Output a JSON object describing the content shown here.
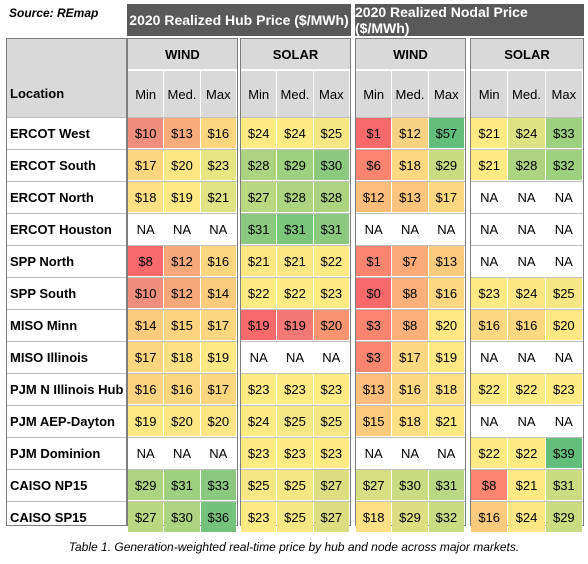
{
  "source": "Source: REmap",
  "hub_title": "2020 Realized Hub  Price ($/MWh)",
  "nodal_title": "2020 Realized Nodal Price ($/MWh)",
  "location_label": "Location",
  "groups": [
    "WIND",
    "SOLAR",
    "WIND",
    "SOLAR"
  ],
  "col_labels": [
    "Min",
    "Med.",
    "Max"
  ],
  "rows": [
    {
      "location": "ERCOT West",
      "values": [
        "$10",
        "$13",
        "$16",
        "$24",
        "$24",
        "$25",
        "$1",
        "$12",
        "$57",
        "$21",
        "$24",
        "$33"
      ]
    },
    {
      "location": "ERCOT South",
      "values": [
        "$17",
        "$20",
        "$23",
        "$28",
        "$29",
        "$30",
        "$6",
        "$18",
        "$29",
        "$21",
        "$28",
        "$32"
      ]
    },
    {
      "location": "ERCOT North",
      "values": [
        "$18",
        "$19",
        "$21",
        "$27",
        "$28",
        "$28",
        "$12",
        "$13",
        "$17",
        "NA",
        "NA",
        "NA"
      ]
    },
    {
      "location": "ERCOT Houston",
      "values": [
        "NA",
        "NA",
        "NA",
        "$31",
        "$31",
        "$31",
        "NA",
        "NA",
        "NA",
        "NA",
        "NA",
        "NA"
      ]
    },
    {
      "location": "SPP North",
      "values": [
        "$8",
        "$12",
        "$16",
        "$21",
        "$21",
        "$22",
        "$1",
        "$7",
        "$13",
        "NA",
        "NA",
        "NA"
      ]
    },
    {
      "location": "SPP South",
      "values": [
        "$10",
        "$12",
        "$14",
        "$22",
        "$22",
        "$23",
        "$0",
        "$8",
        "$16",
        "$23",
        "$24",
        "$25"
      ]
    },
    {
      "location": "MISO Minn",
      "values": [
        "$14",
        "$15",
        "$17",
        "$19",
        "$19",
        "$20",
        "$3",
        "$8",
        "$20",
        "$16",
        "$16",
        "$20"
      ]
    },
    {
      "location": "MISO Illinois",
      "values": [
        "$17",
        "$18",
        "$19",
        "NA",
        "NA",
        "NA",
        "$3",
        "$17",
        "$19",
        "NA",
        "NA",
        "NA"
      ]
    },
    {
      "location": "PJM N Illinois Hub",
      "values": [
        "$16",
        "$16",
        "$17",
        "$23",
        "$23",
        "$23",
        "$13",
        "$16",
        "$18",
        "$22",
        "$22",
        "$23"
      ]
    },
    {
      "location": "PJM AEP-Dayton",
      "values": [
        "$19",
        "$20",
        "$20",
        "$24",
        "$25",
        "$25",
        "$15",
        "$18",
        "$21",
        "NA",
        "NA",
        "NA"
      ]
    },
    {
      "location": "PJM Dominion",
      "values": [
        "NA",
        "NA",
        "NA",
        "$23",
        "$23",
        "$23",
        "NA",
        "NA",
        "NA",
        "$22",
        "$22",
        "$39"
      ]
    },
    {
      "location": "CAISO NP15",
      "values": [
        "$29",
        "$31",
        "$33",
        "$25",
        "$25",
        "$27",
        "$27",
        "$30",
        "$31",
        "$8",
        "$21",
        "$31"
      ]
    },
    {
      "location": "CAISO SP15",
      "values": [
        "$27",
        "$30",
        "$36",
        "$23",
        "$25",
        "$27",
        "$18",
        "$29",
        "$32",
        "$16",
        "$24",
        "$29"
      ]
    }
  ],
  "colors": [
    [
      "#f08e7d",
      "#f8ac7b",
      "#fcd67f",
      "#ffeb84",
      "#ffeb84",
      "#f4e784",
      "#f8696b",
      "#f6d282",
      "#63be7b",
      "#ffeb84",
      "#dde283",
      "#9dd07f"
    ],
    [
      "#fcd67f",
      "#fde784",
      "#e8e583",
      "#acd480",
      "#9dd07f",
      "#8bca7e",
      "#f98570",
      "#fed880",
      "#c9dc82",
      "#ffeb84",
      "#acd480",
      "#9dd07f"
    ],
    [
      "#fde084",
      "#fee883",
      "#e0e383",
      "#b8d881",
      "#acd480",
      "#acd480",
      "#fcbc7b",
      "#fcc47c",
      "#fed880",
      "#ffffff",
      "#ffffff",
      "#ffffff"
    ],
    [
      "#ffffff",
      "#ffffff",
      "#ffffff",
      "#8bca7e",
      "#7cc67c",
      "#8bca7e",
      "#ffffff",
      "#ffffff",
      "#ffffff",
      "#ffffff",
      "#ffffff",
      "#ffffff"
    ],
    [
      "#f8696b",
      "#f8a77a",
      "#fcd67f",
      "#fde784",
      "#fde784",
      "#fbe984",
      "#f98570",
      "#fbaa78",
      "#fcca7c",
      "#ffffff",
      "#ffffff",
      "#ffffff"
    ],
    [
      "#f08e7d",
      "#f8a77a",
      "#facb7d",
      "#ffeb84",
      "#ffeb84",
      "#ffeb84",
      "#f8696b",
      "#fbb079",
      "#fed880",
      "#ffeb84",
      "#fde784",
      "#f4e784"
    ],
    [
      "#faca7d",
      "#fbd27f",
      "#fcd67f",
      "#f8696b",
      "#f27875",
      "#f8946f",
      "#f98570",
      "#fbb079",
      "#fee883",
      "#fed880",
      "#fed880",
      "#fee883"
    ],
    [
      "#fcd67f",
      "#fde084",
      "#fee883",
      "#ffffff",
      "#ffffff",
      "#ffffff",
      "#f98570",
      "#fed880",
      "#fee883",
      "#ffffff",
      "#ffffff",
      "#ffffff"
    ],
    [
      "#fbd27f",
      "#fcd67f",
      "#fcd67f",
      "#ffeb84",
      "#ffeb84",
      "#ffeb84",
      "#fcbc7b",
      "#fed880",
      "#fee083",
      "#ffeb84",
      "#ffeb84",
      "#ffeb84"
    ],
    [
      "#fee883",
      "#fde784",
      "#fde784",
      "#ffeb84",
      "#f4e784",
      "#f4e784",
      "#fcca7c",
      "#fee083",
      "#fee883",
      "#ffffff",
      "#ffffff",
      "#ffffff"
    ],
    [
      "#ffffff",
      "#ffffff",
      "#ffffff",
      "#ffeb84",
      "#ffeb84",
      "#ffeb84",
      "#ffffff",
      "#ffffff",
      "#ffffff",
      "#ffeb84",
      "#ffeb84",
      "#63be7b"
    ],
    [
      "#acd480",
      "#9dd07f",
      "#8bca7e",
      "#f4e784",
      "#f4e784",
      "#ddde82",
      "#d6e082",
      "#c9dc82",
      "#b8d881",
      "#f98570",
      "#fee883",
      "#c9dc82"
    ],
    [
      "#b8d881",
      "#acd480",
      "#74c27c",
      "#ffeb84",
      "#f4e784",
      "#ddde82",
      "#fde084",
      "#ddde82",
      "#c9dc82",
      "#fcca7c",
      "#fde784",
      "#c9dc82"
    ]
  ],
  "caption": "Table 1. Generation-weighted real-time price by hub and node across major markets."
}
